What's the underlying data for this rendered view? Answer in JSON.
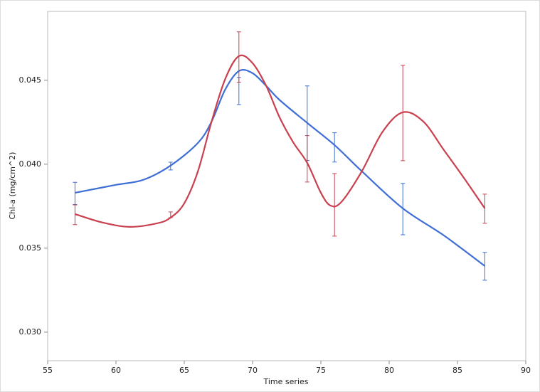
{
  "chart_data": {
    "type": "line",
    "xlabel": "Time series",
    "ylabel": "Chl-a (mg/cm^2)",
    "xlim": [
      55,
      90
    ],
    "ylim": [
      0.0283,
      0.0491
    ],
    "xticks": [
      55,
      60,
      65,
      70,
      75,
      80,
      85,
      90
    ],
    "yticks": [
      {
        "value": 0.03,
        "label": "0.030"
      },
      {
        "value": 0.035,
        "label": "0.035"
      },
      {
        "value": 0.04,
        "label": "0.040"
      },
      {
        "value": 0.045,
        "label": "0.045"
      }
    ],
    "series": [
      {
        "color": "#3f6fd6",
        "x": [
          57,
          60,
          62,
          64,
          66,
          67,
          68,
          69,
          70,
          71,
          72,
          74,
          76,
          78,
          81,
          84,
          87
        ],
        "values": [
          0.0383,
          0.03877,
          0.03907,
          0.03992,
          0.04127,
          0.04254,
          0.04445,
          0.04555,
          0.04542,
          0.04466,
          0.04381,
          0.04246,
          0.04114,
          0.03958,
          0.03737,
          0.03576,
          0.03394
        ],
        "error_bars": {
          "x": [
            57,
            64,
            69,
            74,
            76,
            81,
            87
          ],
          "values": [
            0.03826,
            0.03989,
            0.04436,
            0.04244,
            0.041,
            0.03733,
            0.03392
          ],
          "errors": [
            0.00066,
            0.00023,
            0.00081,
            0.00222,
            0.00087,
            0.00153,
            0.00083
          ]
        }
      },
      {
        "color": "#c9404f",
        "x": [
          57,
          59,
          61,
          63,
          64,
          65,
          66,
          67,
          68,
          69,
          70,
          71,
          72,
          73,
          74,
          75,
          75.7,
          76.5,
          78,
          79.5,
          81,
          82.5,
          84,
          85.5,
          87
        ],
        "values": [
          0.03703,
          0.03653,
          0.03627,
          0.03648,
          0.03682,
          0.03767,
          0.03958,
          0.04254,
          0.04508,
          0.04644,
          0.04602,
          0.04466,
          0.04275,
          0.04127,
          0.04008,
          0.0383,
          0.03754,
          0.03775,
          0.03958,
          0.04191,
          0.04309,
          0.04254,
          0.04085,
          0.03915,
          0.03737
        ],
        "error_bars": {
          "x": [
            57,
            64,
            69,
            74,
            76,
            81,
            87
          ],
          "values": [
            0.03699,
            0.03699,
            0.04638,
            0.04032,
            0.03758,
            0.04305,
            0.03735
          ],
          "errors": [
            0.00059,
            0.00017,
            0.0015,
            0.00138,
            0.00186,
            0.00284,
            0.00087
          ]
        }
      }
    ]
  }
}
